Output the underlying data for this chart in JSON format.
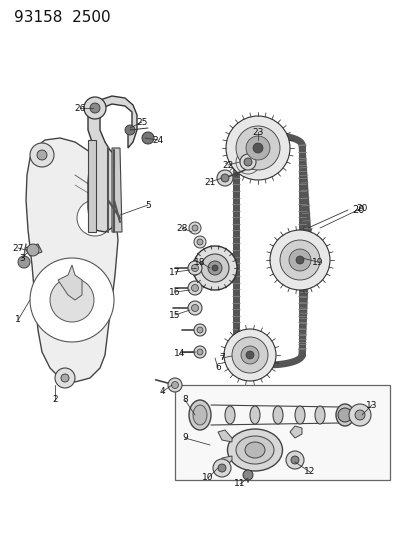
{
  "title_text": "93158  2500",
  "bg_color": "#ffffff",
  "line_color": "#333333",
  "figsize": [
    4.14,
    5.33
  ],
  "dpi": 100,
  "title_fontsize": 11,
  "font_size_labels": 6.5
}
